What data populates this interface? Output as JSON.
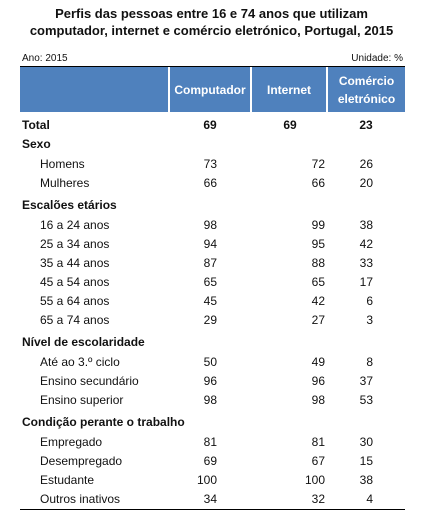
{
  "header": {
    "title": [
      "Perfis das pessoas entre 16 e 74 anos que utilizam",
      "computador, internet e comércio eletrónico, Portugal, 2015"
    ],
    "year": "Ano: 2015",
    "unit": "Unidade: %"
  },
  "table": {
    "columns": [
      "Computador",
      "Internet",
      "Comércio eletrónico"
    ],
    "total": {
      "label": "Total",
      "values": [
        69,
        69,
        23
      ]
    },
    "groups": [
      {
        "title": "Sexo",
        "rows": [
          {
            "label": "Homens",
            "values": [
              73,
              72,
              26
            ]
          },
          {
            "label": "Mulheres",
            "values": [
              66,
              66,
              20
            ]
          }
        ]
      },
      {
        "title": "Escalões etários",
        "rows": [
          {
            "label": "16 a 24 anos",
            "values": [
              98,
              99,
              38
            ]
          },
          {
            "label": "25 a 34 anos",
            "values": [
              94,
              95,
              42
            ]
          },
          {
            "label": "35 a 44 anos",
            "values": [
              87,
              88,
              33
            ]
          },
          {
            "label": "45 a 54 anos",
            "values": [
              65,
              65,
              17
            ]
          },
          {
            "label": "55 a 64 anos",
            "values": [
              45,
              42,
              6
            ]
          },
          {
            "label": "65 a 74 anos",
            "values": [
              29,
              27,
              3
            ]
          }
        ]
      },
      {
        "title": "Nível de escolaridade",
        "rows": [
          {
            "label": "Até ao 3.º ciclo",
            "values": [
              50,
              49,
              8
            ]
          },
          {
            "label": "Ensino secundário",
            "values": [
              96,
              96,
              37
            ]
          },
          {
            "label": "Ensino superior",
            "values": [
              98,
              98,
              53
            ]
          }
        ]
      },
      {
        "title": "Condição perante o trabalho",
        "rows": [
          {
            "label": "Empregado",
            "values": [
              81,
              81,
              30
            ]
          },
          {
            "label": "Desempregado",
            "values": [
              69,
              67,
              15
            ]
          },
          {
            "label": "Estudante",
            "values": [
              100,
              100,
              38
            ]
          },
          {
            "label": "Outros inativos",
            "values": [
              34,
              32,
              4
            ]
          }
        ]
      }
    ]
  }
}
